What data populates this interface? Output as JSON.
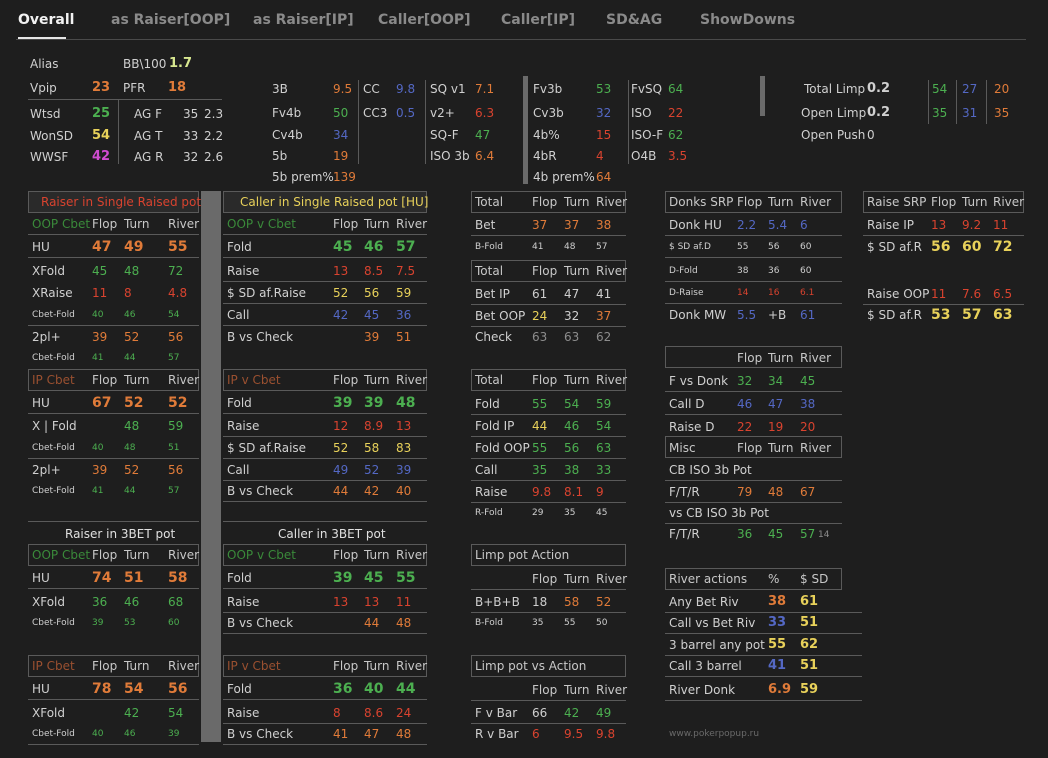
{
  "tabs": [
    "Overall",
    "as Raiser[OOP]",
    "as Raiser[IP]",
    "Caller[OOP]",
    "Caller[IP]",
    "SD&AG",
    "ShowDowns"
  ],
  "colors": {
    "bg": "#1e1e1e",
    "green": "#4caf50",
    "orange": "#e07b39",
    "red": "#d9432f",
    "blue": "#5468c4",
    "yellow": "#e8d15a",
    "magenta": "#d04cd0",
    "grey": "#8c8c8c",
    "light": "#cfcfcf"
  },
  "top": {
    "alias": "Alias",
    "bb100_label": "BB\\100",
    "bb100": "1.7",
    "vpip_label": "Vpip",
    "vpip": "23",
    "pfr_label": "PFR",
    "pfr": "18",
    "wtsd_label": "Wtsd",
    "wtsd": "25",
    "agf_label": "AG F",
    "agf1": "35",
    "agf2": "2.3",
    "wonsd_label": "WonSD",
    "wonsd": "54",
    "agt_label": "AG T",
    "agt1": "33",
    "agt2": "2.2",
    "wwsf_label": "WWSF",
    "wwsf": "42",
    "agr_label": "AG R",
    "agr1": "32",
    "agr2": "2.6",
    "c1": [
      [
        "3B",
        "9.5"
      ],
      [
        "Fv4b",
        "50"
      ],
      [
        "Cv4b",
        "34"
      ],
      [
        "5b",
        "19"
      ],
      [
        "5b prem%",
        "139"
      ]
    ],
    "c2": [
      [
        "CC",
        "9.8"
      ],
      [
        "CC3",
        "0.5"
      ]
    ],
    "c3": [
      [
        "SQ v1",
        "7.1"
      ],
      [
        "v2+",
        "6.3"
      ],
      [
        "SQ-F",
        "47"
      ],
      [
        "ISO 3b",
        "6.4"
      ]
    ],
    "c4": [
      [
        "Fv3b",
        "53"
      ],
      [
        "Cv3b",
        "32"
      ],
      [
        "4b%",
        "15"
      ],
      [
        "4bR",
        "4"
      ],
      [
        "4b prem%",
        "64"
      ]
    ],
    "c5": [
      [
        "FvSQ",
        "64"
      ],
      [
        "ISO",
        "22"
      ],
      [
        "ISO-F",
        "62"
      ],
      [
        "O4B",
        "3.5"
      ]
    ],
    "limp": {
      "total_limp": "Total Limp",
      "total_limp_v": "0.2",
      "open_limp": "Open Limp",
      "open_limp_v": "0.2",
      "open_push": "Open Push",
      "open_push_v": "0",
      "r1": [
        "54",
        "27",
        "20"
      ],
      "r2": [
        "35",
        "31",
        "35"
      ]
    }
  },
  "ftr": [
    "Flop",
    "Turn",
    "River"
  ],
  "raiser_srp": {
    "title": "Raiser in Single Raised pot",
    "oop_cbet": "OOP Cbet",
    "ip_cbet": "IP Cbet",
    "oop": [
      [
        "HU",
        "47",
        "49",
        "55"
      ],
      [
        "XFold",
        "45",
        "48",
        "72"
      ],
      [
        "XRaise",
        "11",
        "8",
        "4.8"
      ],
      [
        "Cbet-Fold",
        "40",
        "46",
        "54"
      ],
      [
        "2pl+",
        "39",
        "52",
        "56"
      ],
      [
        "Cbet-Fold",
        "41",
        "44",
        "57"
      ]
    ],
    "ip": [
      [
        "HU",
        "67",
        "52",
        "52"
      ],
      [
        "X | Fold",
        "",
        "48",
        "59"
      ],
      [
        "Cbet-Fold",
        "40",
        "48",
        "51"
      ],
      [
        "2pl+",
        "39",
        "52",
        "56"
      ],
      [
        "Cbet-Fold",
        "41",
        "44",
        "57"
      ]
    ]
  },
  "caller_srp": {
    "title": "Caller in Single Raised pot [HU]",
    "oop_v_cbet": "OOP v Cbet",
    "ip_v_cbet": "IP v Cbet",
    "oop": [
      [
        "Fold",
        "45",
        "46",
        "57"
      ],
      [
        "Raise",
        "13",
        "8.5",
        "7.5"
      ],
      [
        "$ SD af.Raise",
        "52",
        "56",
        "59"
      ],
      [
        "Call",
        "42",
        "45",
        "36"
      ],
      [
        "B vs Check",
        "",
        "39",
        "51"
      ]
    ],
    "ip": [
      [
        "Fold",
        "39",
        "39",
        "48"
      ],
      [
        "Raise",
        "12",
        "8.9",
        "13"
      ],
      [
        "$ SD af.Raise",
        "52",
        "58",
        "83"
      ],
      [
        "Call",
        "49",
        "52",
        "39"
      ],
      [
        "B vs Check",
        "44",
        "42",
        "40"
      ]
    ]
  },
  "raiser_3bet": {
    "title": "Raiser in 3BET pot",
    "oop_cbet": "OOP Cbet",
    "ip_cbet": "IP Cbet",
    "oop": [
      [
        "HU",
        "74",
        "51",
        "58"
      ],
      [
        "XFold",
        "36",
        "46",
        "68"
      ],
      [
        "Cbet-Fold",
        "39",
        "53",
        "60"
      ]
    ],
    "ip": [
      [
        "HU",
        "78",
        "54",
        "56"
      ],
      [
        "XFold",
        "",
        "42",
        "54"
      ],
      [
        "Cbet-Fold",
        "40",
        "46",
        "39"
      ]
    ]
  },
  "caller_3bet": {
    "title": "Caller in 3BET pot",
    "oop_v_cbet": "OOP v Cbet",
    "ip_v_cbet": "IP v Cbet",
    "oop": [
      [
        "Fold",
        "39",
        "45",
        "55"
      ],
      [
        "Raise",
        "13",
        "13",
        "11"
      ],
      [
        "B vs Check",
        "",
        "44",
        "48"
      ]
    ],
    "ip": [
      [
        "Fold",
        "36",
        "40",
        "44"
      ],
      [
        "Raise",
        "8",
        "8.6",
        "24"
      ],
      [
        "B vs Check",
        "41",
        "47",
        "48"
      ]
    ]
  },
  "totals": {
    "total": "Total",
    "t1": [
      [
        "Bet",
        "37",
        "37",
        "38"
      ],
      [
        "B-Fold",
        "41",
        "48",
        "57"
      ]
    ],
    "t2": [
      [
        "Bet IP",
        "61",
        "47",
        "41"
      ],
      [
        "Bet OOP",
        "24",
        "32",
        "37"
      ],
      [
        "Check",
        "63",
        "63",
        "62"
      ]
    ],
    "t3": [
      [
        "Fold",
        "55",
        "54",
        "59"
      ],
      [
        "Fold IP",
        "44",
        "46",
        "54"
      ],
      [
        "Fold OOP",
        "55",
        "56",
        "63"
      ],
      [
        "Call",
        "35",
        "38",
        "33"
      ],
      [
        "Raise",
        "9.8",
        "8.1",
        "9"
      ],
      [
        "R-Fold",
        "29",
        "35",
        "45"
      ]
    ]
  },
  "limp_pot": {
    "title": "Limp pot Action",
    "rows": [
      [
        "B+B+B",
        "18",
        "58",
        "52"
      ],
      [
        "B-Fold",
        "35",
        "55",
        "50"
      ]
    ]
  },
  "limp_vs": {
    "title": "Limp pot vs Action",
    "rows": [
      [
        "F v Bar",
        "66",
        "42",
        "49"
      ],
      [
        "R v Bar",
        "6",
        "9.5",
        "9.8"
      ]
    ]
  },
  "donks": {
    "title": "Donks SRP",
    "rows": [
      [
        "Donk HU",
        "2.2",
        "5.4",
        "6"
      ],
      [
        "$ SD af.D",
        "55",
        "56",
        "60"
      ],
      [
        "D-Fold",
        "38",
        "36",
        "60"
      ],
      [
        "D-Raise",
        "14",
        "16",
        "6.1"
      ],
      [
        "Donk MW",
        "5.5",
        "+B",
        "61"
      ]
    ]
  },
  "vsdonk": {
    "rows": [
      [
        "F vs Donk",
        "32",
        "34",
        "45"
      ],
      [
        "Call D",
        "46",
        "47",
        "38"
      ],
      [
        "Raise D",
        "22",
        "19",
        "20"
      ]
    ]
  },
  "misc": {
    "title": "Misc",
    "cb_iso": "CB ISO 3b Pot",
    "ftr1": "F/T/R",
    "ftr1_v": [
      "79",
      "48",
      "67"
    ],
    "vs_cb_iso": "vs CB ISO 3b Pot",
    "ftr2": "F/T/R",
    "ftr2_v": [
      "36",
      "45",
      "57"
    ],
    "ftr2_n": "14"
  },
  "river": {
    "title": "River actions",
    "pct": "%",
    "sd": "$ SD",
    "rows": [
      [
        "Any Bet Riv",
        "38",
        "61"
      ],
      [
        "Call vs Bet Riv",
        "33",
        "51"
      ],
      [
        "3 barrel any pot",
        "55",
        "62"
      ],
      [
        "Call 3 barrel",
        "41",
        "51"
      ],
      [
        "River Donk",
        "6.9",
        "59"
      ]
    ]
  },
  "raise_srp": {
    "title": "Raise SRP",
    "rows": [
      [
        "Raise IP",
        "13",
        "9.2",
        "11"
      ],
      [
        "$ SD af.R",
        "56",
        "60",
        "72"
      ],
      [
        "Raise OOP",
        "11",
        "7.6",
        "6.5"
      ],
      [
        "$ SD af.R",
        "53",
        "57",
        "63"
      ]
    ]
  },
  "footer": "www.pokerpopup.ru"
}
